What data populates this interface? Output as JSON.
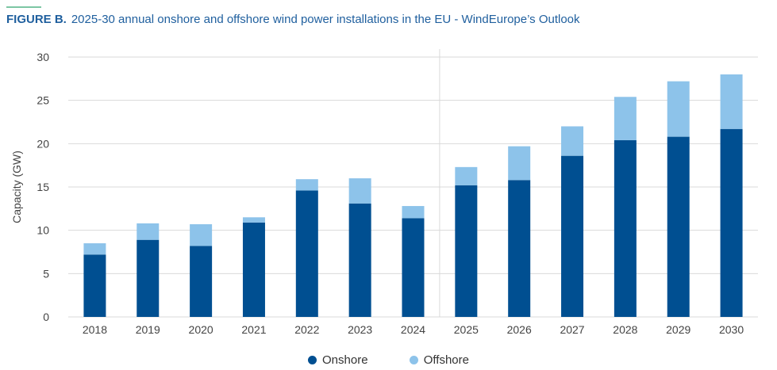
{
  "figure": {
    "label": "FIGURE B.",
    "title": "2025-30 annual onshore and offshore wind power installations in the EU - WindEurope’s Outlook"
  },
  "colors": {
    "onshore": "#004f91",
    "offshore": "#8dc3ea",
    "accent": "#7cc6a4",
    "grid": "#d9d9d9"
  },
  "chart_data": {
    "type": "bar",
    "stacked": true,
    "title": "2025-30 annual onshore and offshore wind power installations in the EU - WindEurope’s Outlook",
    "xlabel": "",
    "ylabel": "Capacity (GW)",
    "ylim": [
      0,
      30
    ],
    "yticks": [
      0,
      5,
      10,
      15,
      20,
      25,
      30
    ],
    "categories": [
      "2018",
      "2019",
      "2020",
      "2021",
      "2022",
      "2023",
      "2024",
      "2025",
      "2026",
      "2027",
      "2028",
      "2029",
      "2030"
    ],
    "series": [
      {
        "name": "Onshore",
        "values": [
          7.2,
          8.9,
          8.2,
          10.9,
          14.6,
          13.1,
          11.4,
          15.2,
          15.8,
          18.6,
          20.4,
          20.8,
          21.7
        ]
      },
      {
        "name": "Offshore",
        "values": [
          1.3,
          1.9,
          2.5,
          0.6,
          1.3,
          2.9,
          1.4,
          2.1,
          3.9,
          3.4,
          5.0,
          6.4,
          6.3
        ]
      }
    ],
    "divider_after": "2024",
    "grid": true,
    "legend": "bottom-center"
  }
}
